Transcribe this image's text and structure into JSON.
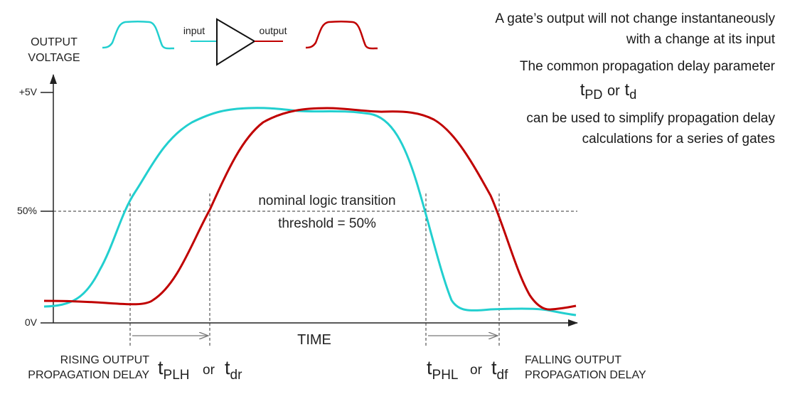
{
  "header": {
    "y_axis_title_line1": "OUTPUT",
    "y_axis_title_line2": "VOLTAGE",
    "gate_input_label": "input",
    "gate_output_label": "output"
  },
  "axis": {
    "tick_top": "+5V",
    "tick_mid": "50%",
    "tick_bottom": "0V",
    "x_label": "TIME"
  },
  "threshold": {
    "line1": "nominal logic transition",
    "line2": "threshold = 50%"
  },
  "side_text": {
    "line1": "A gate’s output will not change instantaneously",
    "line2": "with a change at its input",
    "line3": "The common propagation delay parameter",
    "tpd_main": "t",
    "tpd_sub": "PD",
    "tpd_or": "or",
    "td_main": "t",
    "td_sub": "d",
    "line4": "can be used to simplify propagation delay",
    "line5": "calculations for a series of gates"
  },
  "delays": {
    "rising_caption_line1": "RISING OUTPUT",
    "rising_caption_line2": "PROPAGATION DELAY",
    "rising_t1_main": "t",
    "rising_t1_sub": "PLH",
    "rising_or": "or",
    "rising_t2_main": "t",
    "rising_t2_sub": "dr",
    "falling_t1_main": "t",
    "falling_t1_sub": "PHL",
    "falling_or": "or",
    "falling_t2_main": "t",
    "falling_t2_sub": "df",
    "falling_caption_line1": "FALLING OUTPUT",
    "falling_caption_line2": "PROPAGATION DELAY"
  },
  "colors": {
    "input_wave": "#22cfcf",
    "output_wave": "#c00000",
    "axis": "#222222",
    "guide": "#333333",
    "arrow": "#777777"
  }
}
